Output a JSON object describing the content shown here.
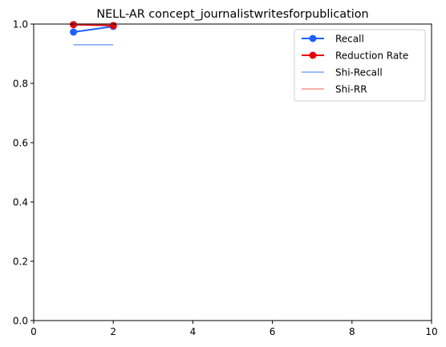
{
  "chart_data": {
    "type": "line",
    "title": "NELL-AR concept_journalistwritesforpublication",
    "xlabel": "",
    "ylabel": "",
    "xlim": [
      0,
      10
    ],
    "ylim": [
      0,
      1.0
    ],
    "x_ticks": [
      0,
      2,
      4,
      6,
      8,
      10
    ],
    "y_ticks": [
      0.0,
      0.2,
      0.4,
      0.6,
      0.8,
      1.0
    ],
    "x_tick_labels": [
      "0",
      "2",
      "4",
      "6",
      "8",
      "10"
    ],
    "y_tick_labels": [
      "0.0",
      "0.2",
      "0.4",
      "0.6",
      "0.8",
      "1.0"
    ],
    "grid": false,
    "legend_position": "top-right",
    "series": [
      {
        "name": "Recall",
        "style": "line-marker",
        "color": "#1f5fff",
        "x": [
          1,
          2
        ],
        "y": [
          0.973,
          0.992
        ]
      },
      {
        "name": "Reduction Rate",
        "style": "line-marker",
        "color": "#e8000b",
        "x": [
          1,
          2
        ],
        "y": [
          0.998,
          0.995
        ]
      },
      {
        "name": "Shi-Recall",
        "style": "line",
        "color": "#7aa7f5",
        "x": [
          1,
          2
        ],
        "y": [
          0.93,
          0.93
        ]
      },
      {
        "name": "Shi-RR",
        "style": "line",
        "color": "#f5948c",
        "x": [
          1,
          2
        ],
        "y": [
          1.0,
          1.0
        ]
      }
    ]
  }
}
